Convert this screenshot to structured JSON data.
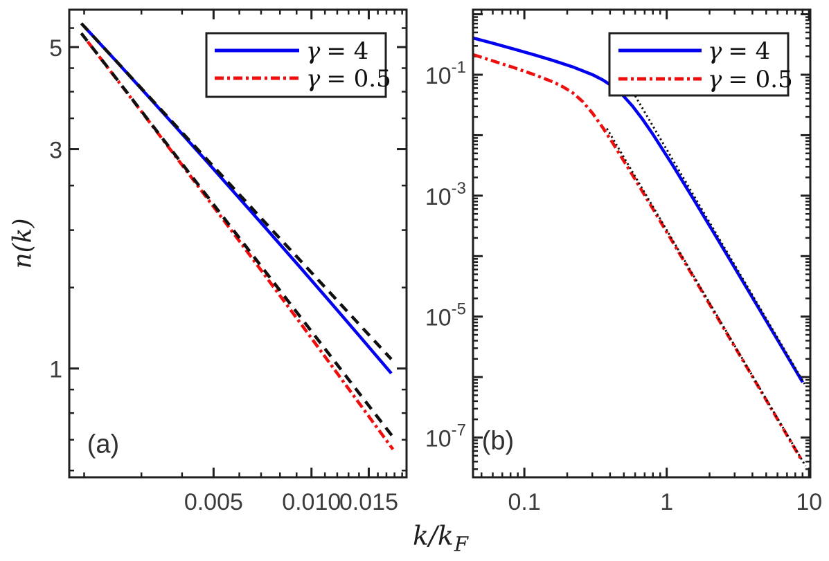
{
  "figure": {
    "ylabel": "n(k)",
    "xlabel": {
      "base": "k/k",
      "sub": "F"
    }
  },
  "style": {
    "colors": {
      "blue": "#0202ef",
      "red": "#ee0e0e",
      "black": "#101010",
      "axis": "#1f1f1f",
      "text": "#3b3b3b"
    }
  },
  "chart_data": {
    "type": "line",
    "title": "",
    "xlabel": "k/k_F",
    "ylabel": "n(k)",
    "x_scale": "log",
    "y_scale": "log",
    "legend_position": "upper right",
    "panels": [
      {
        "id": "a",
        "tag": "(a)",
        "xlim": [
          0.0018,
          0.0196
        ],
        "ylim": [
          0.58,
          6.03
        ],
        "x_ticks": [
          {
            "v": 0.005,
            "label": "0.005"
          },
          {
            "v": 0.01,
            "label": "0.010"
          },
          {
            "v": 0.015,
            "label": "0.015"
          }
        ],
        "y_ticks": [
          {
            "v": 5,
            "label": "5"
          },
          {
            "v": 3,
            "label": "3"
          },
          {
            "v": 1,
            "label": "1"
          }
        ],
        "x_minor": [
          0.002,
          0.003,
          0.004,
          0.006,
          0.007,
          0.008,
          0.009,
          0.011,
          0.012,
          0.013,
          0.014,
          0.016,
          0.017,
          0.018,
          0.019
        ],
        "y_minor": [
          0.6,
          0.7,
          0.8,
          0.9,
          1.5,
          2,
          2.5,
          3.5,
          4,
          4.5,
          5.5
        ],
        "legend": {
          "entries": [
            {
              "label": "γ = 4",
              "color": "blue",
              "style": "solid"
            },
            {
              "label": "γ = 0.5",
              "color": "red",
              "style": "dashdot"
            }
          ]
        },
        "series": [
          {
            "name": "n-k-gamma-4",
            "color": "blue",
            "style": "solid",
            "points": [
              [
                0.002,
                5.546
              ],
              [
                0.002486,
                4.692
              ],
              [
                0.00309,
                3.964
              ],
              [
                0.00384,
                3.343
              ],
              [
                0.004772,
                2.817
              ],
              [
                0.005931,
                2.368
              ],
              [
                0.00737,
                1.99
              ],
              [
                0.009165,
                1.669
              ],
              [
                0.01139,
                1.398
              ],
              [
                0.01416,
                1.169
              ],
              [
                0.0176,
                0.976
              ]
            ]
          },
          {
            "name": "asymptote-gamma-4",
            "color": "black",
            "style": "dashed",
            "points": [
              [
                0.00196,
                5.63
              ],
              [
                0.002,
                5.546
              ],
              [
                0.002486,
                4.695
              ],
              [
                0.00309,
                3.975
              ],
              [
                0.00384,
                3.365
              ],
              [
                0.004772,
                2.849
              ],
              [
                0.005931,
                2.412
              ],
              [
                0.00737,
                2.041
              ],
              [
                0.009165,
                1.728
              ],
              [
                0.01139,
                1.463
              ],
              [
                0.01416,
                1.238
              ],
              [
                0.0176,
                1.048
              ]
            ]
          },
          {
            "name": "n-k-gamma-0.5",
            "color": "red",
            "style": "dashdot",
            "points": [
              [
                0.002051,
                5.14
              ],
              [
                0.002546,
                4.214
              ],
              [
                0.00316,
                3.451
              ],
              [
                0.003922,
                2.823
              ],
              [
                0.004868,
                2.305
              ],
              [
                0.006044,
                1.88
              ],
              [
                0.0075,
                1.532
              ],
              [
                0.009309,
                1.247
              ],
              [
                0.01155,
                1.013
              ],
              [
                0.01434,
                0.822
              ],
              [
                0.0178,
                0.667
              ]
            ]
          },
          {
            "name": "asymptote-gamma-0.5",
            "color": "black",
            "style": "dashed",
            "points": [
              [
                0.00196,
                5.358
              ],
              [
                0.002445,
                4.379
              ],
              [
                0.003048,
                3.577
              ],
              [
                0.003802,
                2.922
              ],
              [
                0.004739,
                2.388
              ],
              [
                0.005909,
                1.951
              ],
              [
                0.007366,
                1.594
              ],
              [
                0.009183,
                1.302
              ],
              [
                0.01145,
                1.064
              ],
              [
                0.01427,
                0.869
              ],
              [
                0.0178,
                0.71
              ]
            ]
          }
        ]
      },
      {
        "id": "b",
        "tag": "(b)",
        "xlim": [
          0.0436,
          10.2
        ],
        "ylim": [
          2.2e-08,
          1.19
        ],
        "x_ticks": [
          {
            "v": 0.1,
            "label": "0.1"
          },
          {
            "v": 1,
            "label": "1"
          },
          {
            "v": 10,
            "label": "10"
          }
        ],
        "y_ticks": [
          {
            "v": 1
          },
          {
            "v": 0.1,
            "label": {
              "base": "10",
              "exp": "-1"
            }
          },
          {
            "v": 0.01
          },
          {
            "v": 0.001,
            "label": {
              "base": "10",
              "exp": "-3"
            }
          },
          {
            "v": 0.0001
          },
          {
            "v": 1e-05,
            "label": {
              "base": "10",
              "exp": "-5"
            }
          },
          {
            "v": 1e-06
          },
          {
            "v": 1e-07,
            "label": {
              "base": "10",
              "exp": "-7"
            }
          }
        ],
        "x_minor": "log",
        "y_minor": "log",
        "legend": {
          "entries": [
            {
              "label": "γ = 4",
              "color": "blue",
              "style": "solid"
            },
            {
              "label": "γ = 0.5",
              "color": "red",
              "style": "dashdot"
            }
          ]
        },
        "series": [
          {
            "name": "n-k-gamma-4",
            "color": "blue",
            "style": "solid",
            "points": [
              [
                0.04365,
                0.4055
              ],
              [
                0.06026,
                0.3304
              ],
              [
                0.08318,
                0.2682
              ],
              [
                0.1148,
                0.2163
              ],
              [
                0.1585,
                0.1725
              ],
              [
                0.2188,
                0.1346
              ],
              [
                0.302,
                0.0997
              ],
              [
                0.3548,
                0.0822
              ],
              [
                0.4169,
                0.0642
              ],
              [
                0.4898,
                0.0462
              ],
              [
                0.5754,
                0.0303
              ],
              [
                0.6761,
                0.0184
              ],
              [
                0.7943,
                0.0106
              ],
              [
                1.097,
                0.00324
              ],
              [
                1.514,
                0.000941
              ],
              [
                2.089,
                0.000268
              ],
              [
                2.884,
                7.53e-05
              ],
              [
                3.981,
                2.1e-05
              ],
              [
                5.495,
                5.86e-06
              ],
              [
                7.586,
                1.63e-06
              ],
              [
                9.016,
                8.2e-07
              ]
            ]
          },
          {
            "name": "n-k-gamma-0.5",
            "color": "red",
            "style": "dashdot",
            "points": [
              [
                0.04365,
                0.2146
              ],
              [
                0.06026,
                0.1692
              ],
              [
                0.08318,
                0.1325
              ],
              [
                0.1148,
                0.1023
              ],
              [
                0.1585,
                0.0762
              ],
              [
                0.1862,
                0.0635
              ],
              [
                0.2188,
                0.0502
              ],
              [
                0.257,
                0.0359
              ],
              [
                0.302,
                0.0229
              ],
              [
                0.3548,
                0.0134
              ],
              [
                0.4169,
                0.00747
              ],
              [
                0.5754,
                0.00219
              ],
              [
                0.7943,
                0.000622
              ],
              [
                1.097,
                0.000174
              ],
              [
                1.514,
                4.86e-05
              ],
              [
                2.089,
                1.35e-05
              ],
              [
                2.884,
                3.74e-06
              ],
              [
                3.981,
                1.04e-06
              ],
              [
                5.495,
                2.86e-07
              ],
              [
                7.586,
                7.9e-08
              ],
              [
                8.933,
                4.11e-08
              ]
            ]
          },
          {
            "name": "tan-contact-asymptote-gamma-4",
            "color": "black",
            "style": "dotted",
            "points": [
              [
                0.6,
                0.0447
              ],
              [
                9.3,
                7.7e-07
              ]
            ]
          },
          {
            "name": "tan-contact-asymptote-gamma-0.5",
            "color": "black",
            "style": "dotted",
            "points": [
              [
                0.38,
                0.0129
              ],
              [
                9.44,
                3.39e-08
              ]
            ]
          }
        ]
      }
    ]
  }
}
